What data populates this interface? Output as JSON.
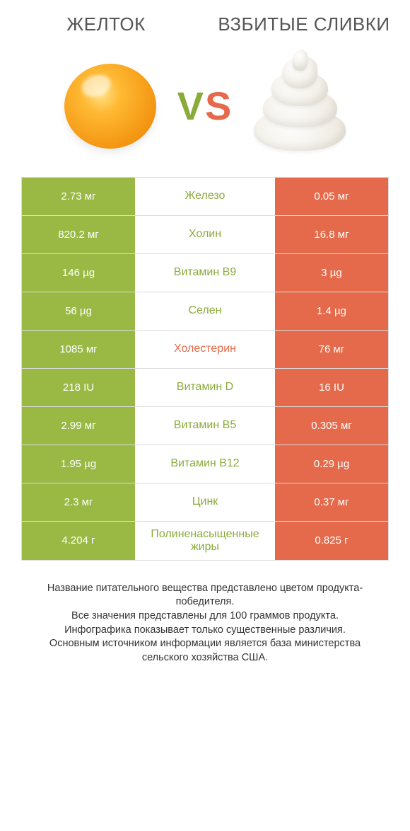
{
  "colors": {
    "green": "#99b944",
    "green_text": "#8aab3b",
    "orange": "#e56a4b",
    "orange_text": "#e56a4b",
    "row_border": "#dcdcdc",
    "background": "#ffffff",
    "header_text": "#555555",
    "footer_text": "#333333"
  },
  "header": {
    "left_title": "ЖЕЛТОК",
    "right_title": "ВЗБИТЫЕ СЛИВКИ"
  },
  "vs": {
    "v": "V",
    "s": "S"
  },
  "table": {
    "type": "comparison-table",
    "left_color": "#99b944",
    "right_color": "#e56a4b",
    "mid_winner_green": "#8aab3b",
    "mid_winner_orange": "#e56a4b",
    "rows": [
      {
        "left": "2.73 мг",
        "mid": "Железо",
        "right": "0.05 мг",
        "winner": "left"
      },
      {
        "left": "820.2 мг",
        "mid": "Холин",
        "right": "16.8 мг",
        "winner": "left"
      },
      {
        "left": "146 µg",
        "mid": "Витамин B9",
        "right": "3 µg",
        "winner": "left"
      },
      {
        "left": "56 µg",
        "mid": "Селен",
        "right": "1.4 µg",
        "winner": "left"
      },
      {
        "left": "1085 мг",
        "mid": "Холестерин",
        "right": "76 мг",
        "winner": "right"
      },
      {
        "left": "218 IU",
        "mid": "Витамин D",
        "right": "16 IU",
        "winner": "left"
      },
      {
        "left": "2.99 мг",
        "mid": "Витамин B5",
        "right": "0.305 мг",
        "winner": "left"
      },
      {
        "left": "1.95 µg",
        "mid": "Витамин B12",
        "right": "0.29 µg",
        "winner": "left"
      },
      {
        "left": "2.3 мг",
        "mid": "Цинк",
        "right": "0.37 мг",
        "winner": "left"
      },
      {
        "left": "4.204 г",
        "mid": "Полиненасыщенные жиры",
        "right": "0.825 г",
        "winner": "left"
      }
    ]
  },
  "footer": {
    "line1": "Название питательного вещества представлено цветом продукта-победителя.",
    "line2": "Все значения представлены для 100 граммов продукта.",
    "line3": "Инфографика показывает только существенные различия.",
    "line4": "Основным источником информации является база министерства сельского хозяйства США."
  }
}
